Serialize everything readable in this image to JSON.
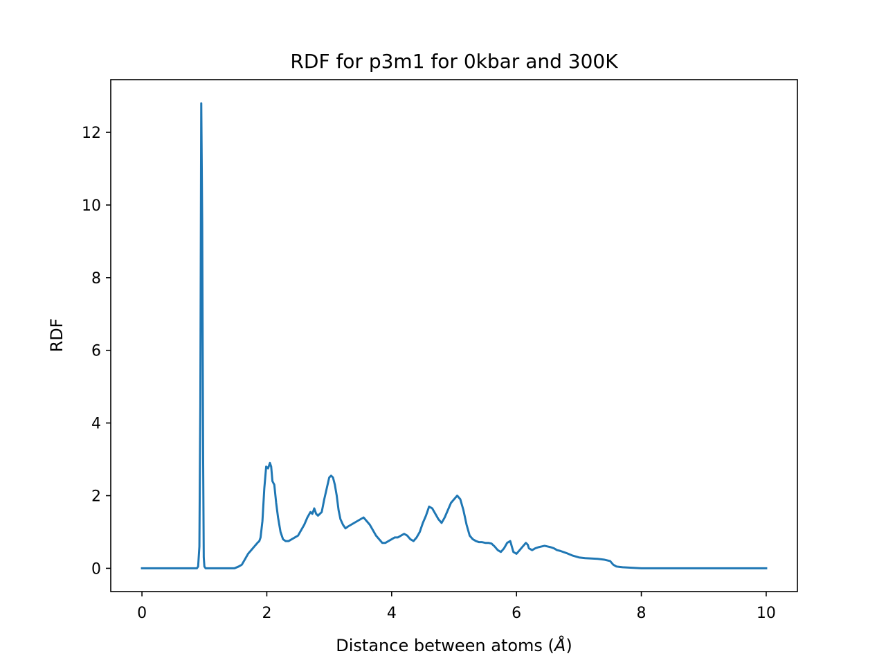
{
  "chart_data": {
    "type": "line",
    "title": "RDF for p3m1 for 0kbar and 300K",
    "xlabel": "Distance between atoms (",
    "xlabel_symbol": "Å",
    "xlabel_close": ")",
    "ylabel": "RDF",
    "xlim": [
      -0.5,
      10.5
    ],
    "ylim": [
      -0.64,
      13.45
    ],
    "xticks": [
      0,
      2,
      4,
      6,
      8,
      10
    ],
    "yticks": [
      0,
      2,
      4,
      6,
      8,
      10,
      12
    ],
    "grid": false,
    "line_color": "#1f77b4",
    "series": [
      {
        "x": [
          0.0,
          0.4,
          0.8,
          0.88,
          0.9,
          0.92,
          0.935,
          0.95,
          0.965,
          0.98,
          0.99,
          1.0,
          1.02,
          1.06,
          1.12,
          1.2,
          1.3,
          1.4,
          1.48,
          1.55,
          1.6,
          1.65,
          1.7,
          1.75,
          1.8,
          1.85,
          1.88,
          1.9,
          1.93,
          1.96,
          1.99,
          2.02,
          2.05,
          2.07,
          2.09,
          2.12,
          2.15,
          2.18,
          2.22,
          2.26,
          2.3,
          2.35,
          2.4,
          2.45,
          2.5,
          2.55,
          2.6,
          2.65,
          2.7,
          2.73,
          2.76,
          2.79,
          2.82,
          2.85,
          2.88,
          2.92,
          2.96,
          3.0,
          3.03,
          3.06,
          3.09,
          3.12,
          3.15,
          3.18,
          3.22,
          3.26,
          3.3,
          3.35,
          3.4,
          3.45,
          3.5,
          3.55,
          3.6,
          3.65,
          3.7,
          3.75,
          3.8,
          3.85,
          3.9,
          3.95,
          4.0,
          4.05,
          4.1,
          4.15,
          4.2,
          4.25,
          4.3,
          4.35,
          4.4,
          4.45,
          4.5,
          4.55,
          4.6,
          4.65,
          4.7,
          4.75,
          4.8,
          4.85,
          4.9,
          4.95,
          5.0,
          5.05,
          5.1,
          5.15,
          5.2,
          5.25,
          5.3,
          5.35,
          5.4,
          5.45,
          5.5,
          5.55,
          5.6,
          5.65,
          5.7,
          5.75,
          5.8,
          5.85,
          5.9,
          5.95,
          6.0,
          6.05,
          6.1,
          6.15,
          6.18,
          6.2,
          6.25,
          6.3,
          6.35,
          6.4,
          6.45,
          6.5,
          6.55,
          6.6,
          6.65,
          6.7,
          6.8,
          6.9,
          7.0,
          7.1,
          7.2,
          7.3,
          7.4,
          7.5,
          7.55,
          7.6,
          7.65,
          7.7,
          7.8,
          7.9,
          8.0,
          8.2,
          8.5,
          9.0,
          9.5,
          10.0
        ],
        "y": [
          0.0,
          0.0,
          0.0,
          0.0,
          0.05,
          0.6,
          4.5,
          12.8,
          9.5,
          3.0,
          0.3,
          0.05,
          0.0,
          0.0,
          0.0,
          0.0,
          0.0,
          0.0,
          0.0,
          0.05,
          0.1,
          0.25,
          0.4,
          0.5,
          0.6,
          0.7,
          0.75,
          0.85,
          1.3,
          2.2,
          2.8,
          2.75,
          2.9,
          2.8,
          2.4,
          2.3,
          1.8,
          1.4,
          1.0,
          0.8,
          0.75,
          0.75,
          0.8,
          0.85,
          0.9,
          1.05,
          1.2,
          1.4,
          1.55,
          1.5,
          1.65,
          1.5,
          1.45,
          1.5,
          1.55,
          1.9,
          2.2,
          2.5,
          2.55,
          2.5,
          2.3,
          2.0,
          1.6,
          1.35,
          1.2,
          1.1,
          1.15,
          1.2,
          1.25,
          1.3,
          1.35,
          1.4,
          1.3,
          1.2,
          1.05,
          0.9,
          0.8,
          0.7,
          0.7,
          0.75,
          0.8,
          0.85,
          0.85,
          0.9,
          0.95,
          0.9,
          0.8,
          0.75,
          0.85,
          1.0,
          1.25,
          1.45,
          1.7,
          1.65,
          1.5,
          1.35,
          1.25,
          1.4,
          1.6,
          1.8,
          1.9,
          2.0,
          1.9,
          1.6,
          1.2,
          0.9,
          0.8,
          0.75,
          0.72,
          0.72,
          0.7,
          0.7,
          0.68,
          0.6,
          0.5,
          0.45,
          0.55,
          0.7,
          0.75,
          0.45,
          0.4,
          0.5,
          0.6,
          0.7,
          0.65,
          0.55,
          0.5,
          0.55,
          0.58,
          0.6,
          0.62,
          0.6,
          0.58,
          0.55,
          0.5,
          0.48,
          0.42,
          0.35,
          0.3,
          0.28,
          0.27,
          0.26,
          0.24,
          0.2,
          0.1,
          0.05,
          0.04,
          0.03,
          0.02,
          0.01,
          0.0,
          0.0,
          0.0,
          0.0,
          0.0,
          0.0
        ]
      }
    ]
  }
}
